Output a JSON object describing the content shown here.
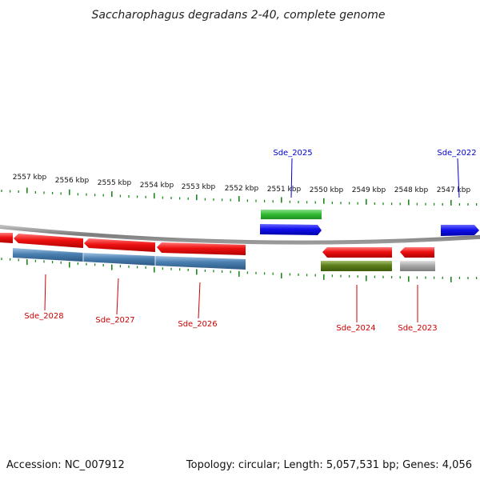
{
  "title": "Saccharophagus degradans 2-40, complete genome",
  "footer": {
    "accession": "Accession: NC_007912",
    "summary": "Topology: circular; Length: 5,057,531 bp; Genes: 4,056"
  },
  "ticks": [
    "2557 kbp",
    "2556 kbp",
    "2555 kbp",
    "2554 kbp",
    "2553 kbp",
    "2552 kbp",
    "2551 kbp",
    "2550 kbp",
    "2549 kbp",
    "2548 kbp",
    "2547 kbp"
  ],
  "labeled_genes": [
    {
      "name": "Sde_2025",
      "strand": "forward"
    },
    {
      "name": "Sde_2022",
      "strand": "forward"
    },
    {
      "name": "Sde_2028",
      "strand": "reverse"
    },
    {
      "name": "Sde_2027",
      "strand": "reverse"
    },
    {
      "name": "Sde_2026",
      "strand": "reverse"
    },
    {
      "name": "Sde_2024",
      "strand": "reverse"
    },
    {
      "name": "Sde_2023",
      "strand": "reverse"
    }
  ],
  "colors": {
    "forward_label": "#0000cc",
    "reverse_label": "#cc0000",
    "backbone": "#8c8c8c",
    "tick": "#1a8a1a",
    "cds_forward": "#1010ee",
    "cds_reverse": "#ee1111",
    "forward_feature": "#33bb33",
    "reverse_feature_blue": "#4a7fb0",
    "reverse_feature_olive": "#5d7f1a",
    "reverse_feature_grey": "#a8a8a8"
  }
}
